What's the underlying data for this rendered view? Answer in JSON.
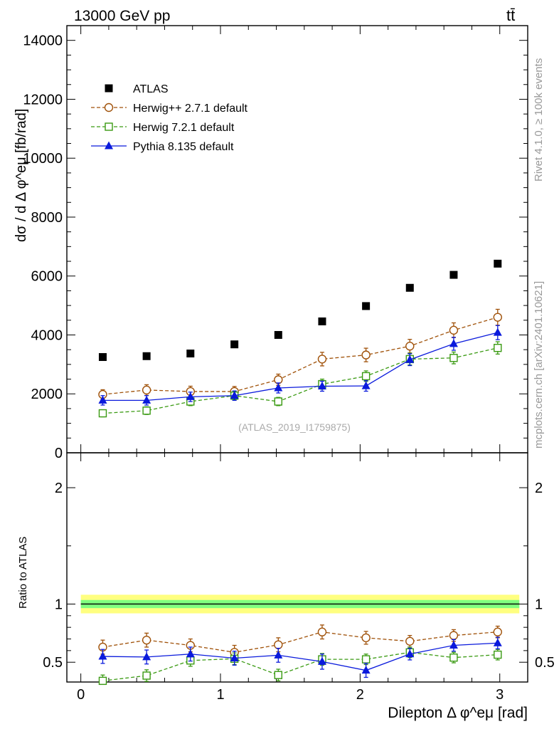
{
  "header": {
    "energy_label": "13000 GeV pp",
    "process_label": "tt̄",
    "rivet_label": "Rivet 4.1.0, ≥ 100k events",
    "site_label": "mcplots.cern.ch [arXiv:2401.10621]",
    "watermark": "(ATLAS_2019_I1759875)"
  },
  "colors": {
    "atlas": "#000000",
    "herwigpp": "#a0520a",
    "herwig7": "#3a9a12",
    "pythia": "#0a1adc",
    "band_outer": "#ffff80",
    "band_inner": "#80ff80"
  },
  "chart_data": [
    {
      "type": "scatter",
      "title": "",
      "xlabel": "Dilepton Δ φ^eμ [rad]",
      "ylabel": "dσ / d Δ φ^eμ [fb/rad]",
      "xlim": [
        -0.1,
        3.2
      ],
      "ylim": [
        0,
        14500
      ],
      "yticks": [
        0,
        2000,
        4000,
        6000,
        8000,
        10000,
        12000,
        14000
      ],
      "ytick_labels": [
        "0",
        "2000",
        "4000",
        "6000",
        "8000",
        "10000",
        "12000",
        "14000"
      ],
      "x": [
        0.157,
        0.471,
        0.785,
        1.1,
        1.414,
        1.728,
        2.042,
        2.356,
        2.67,
        2.985
      ],
      "series": [
        {
          "name": "ATLAS",
          "style": "data",
          "values": [
            3250,
            3280,
            3370,
            3680,
            4000,
            4460,
            4980,
            5600,
            6040,
            6420
          ],
          "errors": [
            0,
            0,
            0,
            0,
            0,
            0,
            0,
            0,
            0,
            0
          ]
        },
        {
          "name": "Herwig++ 2.7.1 default",
          "style": "circle",
          "values": [
            1980,
            2130,
            2080,
            2080,
            2480,
            3180,
            3320,
            3620,
            4160,
            4600
          ],
          "errors": [
            160,
            180,
            180,
            170,
            190,
            230,
            230,
            230,
            250,
            270
          ]
        },
        {
          "name": "Herwig 7.2.1 default",
          "style": "square",
          "values": [
            1340,
            1430,
            1740,
            1940,
            1740,
            2330,
            2600,
            3180,
            3220,
            3560
          ],
          "errors": [
            120,
            130,
            140,
            150,
            140,
            170,
            180,
            200,
            200,
            210
          ]
        },
        {
          "name": "Pythia 8.135 default",
          "style": "triangle",
          "values": [
            1780,
            1780,
            1900,
            1940,
            2200,
            2260,
            2270,
            3160,
            3700,
            4080
          ],
          "errors": [
            160,
            160,
            160,
            160,
            170,
            170,
            180,
            200,
            220,
            240
          ]
        }
      ],
      "legend": "top-left"
    },
    {
      "type": "scatter",
      "title": "",
      "xlabel": "Dilepton Δ φ^eμ [rad]",
      "ylabel": "Ratio to ATLAS",
      "xlim": [
        -0.1,
        3.2
      ],
      "ylim": [
        0.33,
        2.3
      ],
      "yticks": [
        0.5,
        1,
        2
      ],
      "ytick_labels": [
        "0.5",
        "1",
        "2"
      ],
      "xticks": [
        0,
        1,
        2,
        3
      ],
      "xtick_labels": [
        "0",
        "1",
        "2",
        "3"
      ],
      "x": [
        0.157,
        0.471,
        0.785,
        1.1,
        1.414,
        1.728,
        2.042,
        2.356,
        2.67,
        2.985
      ],
      "band": {
        "outer": 0.08,
        "inner": 0.035
      },
      "series": [
        {
          "name": "Herwig++ 2.7.1 default",
          "style": "circle",
          "values": [
            0.63,
            0.69,
            0.645,
            0.585,
            0.65,
            0.76,
            0.71,
            0.68,
            0.73,
            0.76
          ],
          "errors": [
            0.06,
            0.06,
            0.055,
            0.06,
            0.06,
            0.06,
            0.055,
            0.05,
            0.05,
            0.05
          ]
        },
        {
          "name": "Herwig 7.2.1 default",
          "style": "square",
          "values": [
            0.34,
            0.385,
            0.515,
            0.53,
            0.39,
            0.525,
            0.525,
            0.585,
            0.54,
            0.565
          ],
          "errors": [
            0.05,
            0.05,
            0.05,
            0.05,
            0.05,
            0.05,
            0.045,
            0.045,
            0.045,
            0.045
          ]
        },
        {
          "name": "Pythia 8.135 default",
          "style": "triangle",
          "values": [
            0.55,
            0.545,
            0.57,
            0.535,
            0.56,
            0.505,
            0.43,
            0.57,
            0.645,
            0.665
          ],
          "errors": [
            0.06,
            0.06,
            0.06,
            0.06,
            0.06,
            0.065,
            0.06,
            0.05,
            0.05,
            0.05
          ]
        }
      ]
    }
  ]
}
